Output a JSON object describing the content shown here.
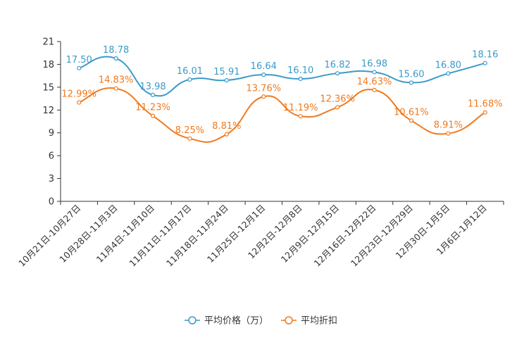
{
  "chart_data": {
    "type": "line",
    "title": "",
    "xlabel": "",
    "ylabel": "",
    "ylim": [
      0,
      21
    ],
    "yticks": [
      "0",
      "3",
      "6",
      "9",
      "12",
      "15",
      "18",
      "21"
    ],
    "grid": false,
    "legend_position": "bottom-center",
    "categories": [
      "10月21日-10月27日",
      "10月28日-11月3日",
      "11月4日-11月10日",
      "11月11日-11月17日",
      "11月18日-11月24日",
      "11月25日-12月1日",
      "12月2日-12月8日",
      "12月9日-12月15日",
      "12月16日-12月22日",
      "12月23日-12月29日",
      "12月30日-1月5日",
      "1月6日-1月12日"
    ],
    "series": [
      {
        "name": "平均价格（万）",
        "color": "#3a9ac9",
        "values": [
          17.5,
          18.78,
          13.98,
          16.01,
          15.91,
          16.64,
          16.1,
          16.82,
          16.98,
          15.6,
          16.8,
          18.16
        ],
        "labels": [
          "17.50",
          "18.78",
          "13.98",
          "16.01",
          "15.91",
          "16.64",
          "16.10",
          "16.82",
          "16.98",
          "15.60",
          "16.80",
          "18.16"
        ]
      },
      {
        "name": "平均折扣",
        "color": "#f07a1e",
        "values": [
          12.99,
          14.83,
          11.23,
          8.25,
          8.81,
          13.76,
          11.19,
          12.36,
          14.63,
          10.61,
          8.91,
          11.68
        ],
        "labels": [
          "12.99%",
          "14.83%",
          "11.23%",
          "8.25%",
          "8.81%",
          "13.76%",
          "11.19%",
          "12.36%",
          "14.63%",
          "10.61%",
          "8.91%",
          "11.68%"
        ]
      }
    ]
  }
}
